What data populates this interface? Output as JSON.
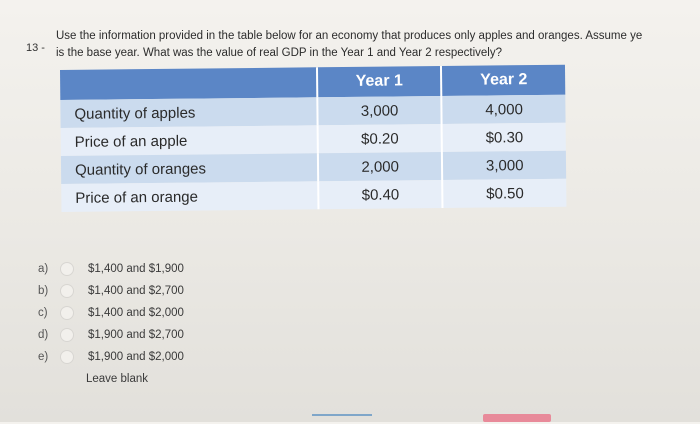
{
  "question": {
    "number": "13 -",
    "line1": "Use the information provided in the table below for an economy that produces only apples and oranges. Assume ye",
    "line2": "is the base year. What was the value of real GDP in the Year 1 and Year 2 respectively?"
  },
  "table": {
    "headers": [
      "",
      "Year 1",
      "Year 2"
    ],
    "rows": [
      {
        "label": "Quantity of apples",
        "year1": "3,000",
        "year2": "4,000"
      },
      {
        "label": "Price of an apple",
        "year1": "$0.20",
        "year2": "$0.30"
      },
      {
        "label": "Quantity of oranges",
        "year1": "2,000",
        "year2": "3,000"
      },
      {
        "label": "Price of an orange",
        "year1": "$0.40",
        "year2": "$0.50"
      }
    ]
  },
  "options": [
    {
      "letter": "a)",
      "text": "$1,400 and $1,900"
    },
    {
      "letter": "b)",
      "text": "$1,400 and $2,700"
    },
    {
      "letter": "c)",
      "text": "$1,400 and $2,000"
    },
    {
      "letter": "d)",
      "text": "$1,900 and $2,700"
    },
    {
      "letter": "e)",
      "text": "$1,900 and $2,000"
    }
  ],
  "leave_blank": "Leave blank",
  "colors": {
    "header_bg": "#5b86c6",
    "row_dark": "#cbdbee",
    "row_light": "#e7eef8"
  }
}
